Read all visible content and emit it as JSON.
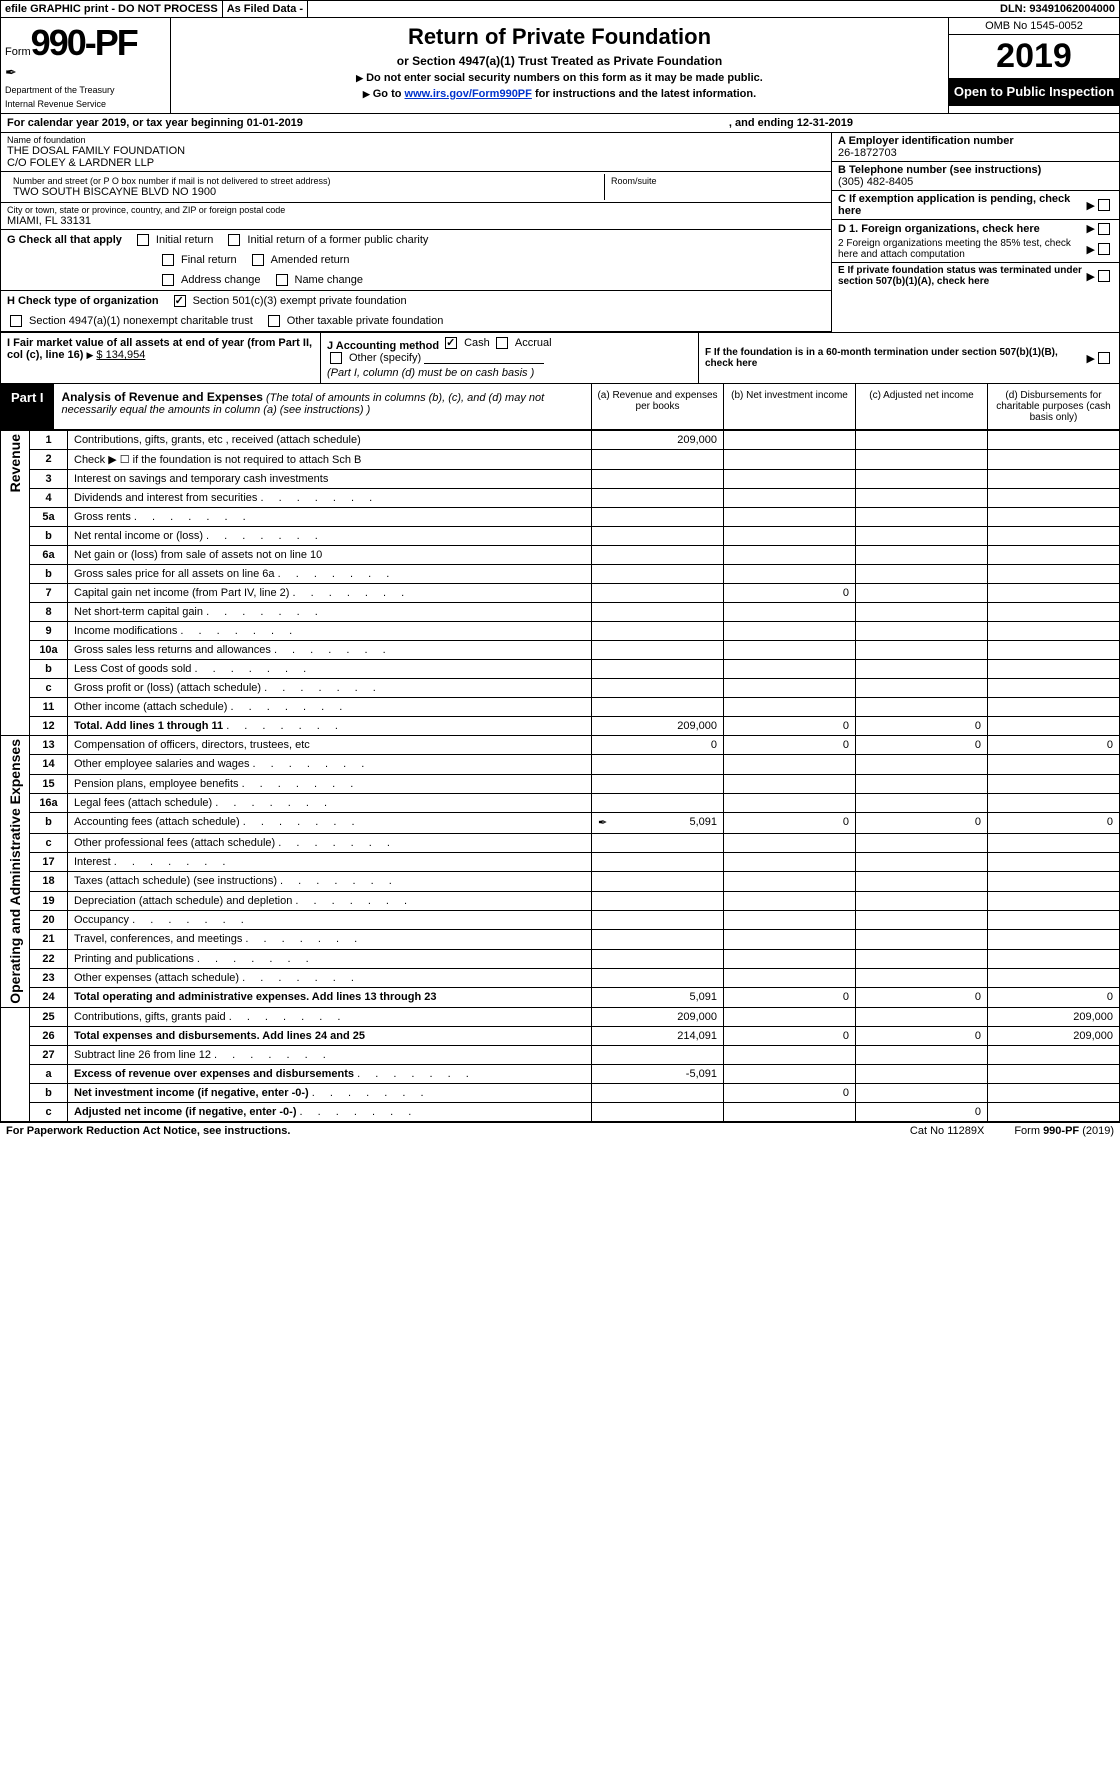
{
  "topbar": {
    "efile": "efile GRAPHIC print - DO NOT PROCESS",
    "asfiled": "As Filed Data -",
    "dln_label": "DLN:",
    "dln": "93491062004000"
  },
  "header": {
    "form_prefix": "Form",
    "form_number": "990-PF",
    "dept": "Department of the Treasury",
    "irs": "Internal Revenue Service",
    "title": "Return of Private Foundation",
    "subtitle": "or Section 4947(a)(1) Trust Treated as Private Foundation",
    "instr1": "Do not enter social security numbers on this form as it may be made public.",
    "instr2": "Go to",
    "instr_link": "www.irs.gov/Form990PF",
    "instr3": "for instructions and the latest information.",
    "omb": "OMB No 1545-0052",
    "year": "2019",
    "inspect": "Open to Public Inspection"
  },
  "cal": {
    "text1": "For calendar year 2019, or tax year beginning 01-01-2019",
    "text2": ", and ending 12-31-2019"
  },
  "entity": {
    "name_lbl": "Name of foundation",
    "name1": "THE DOSAL FAMILY FOUNDATION",
    "name2": "C/O FOLEY & LARDNER LLP",
    "addr_lbl": "Number and street (or P O  box number if mail is not delivered to street address)",
    "addr": "TWO SOUTH BISCAYNE BLVD NO 1900",
    "room_lbl": "Room/suite",
    "city_lbl": "City or town, state or province, country, and ZIP or foreign postal code",
    "city": "MIAMI, FL  33131",
    "ein_lbl": "A Employer identification number",
    "ein": "26-1872703",
    "tel_lbl": "B Telephone number (see instructions)",
    "tel": "(305) 482-8405",
    "c_lbl": "C If exemption application is pending, check here",
    "d1": "D 1. Foreign organizations, check here",
    "d2": "2 Foreign organizations meeting the 85% test, check here and attach computation",
    "e": "E  If private foundation status was terminated under section 507(b)(1)(A), check here",
    "f": "F  If the foundation is in a 60-month termination under section 507(b)(1)(B), check here"
  },
  "g": {
    "label": "G Check all that apply",
    "opts": [
      "Initial return",
      "Initial return of a former public charity",
      "Final return",
      "Amended return",
      "Address change",
      "Name change"
    ]
  },
  "h": {
    "label": "H Check type of organization",
    "opt1": "Section 501(c)(3) exempt private foundation",
    "opt2": "Section 4947(a)(1) nonexempt charitable trust",
    "opt3": "Other taxable private foundation"
  },
  "i": {
    "label": "I Fair market value of all assets at end of year (from Part II, col  (c), line 16)",
    "value": "$  134,954"
  },
  "j": {
    "label": "J Accounting method",
    "opts": [
      "Cash",
      "Accrual",
      "Other (specify)"
    ],
    "note": "(Part I, column (d) must be on cash basis )"
  },
  "part1": {
    "label": "Part I",
    "title": "Analysis of Revenue and Expenses",
    "desc": "(The total of amounts in columns (b), (c), and (d) may not necessarily equal the amounts in column (a) (see instructions) )",
    "cols": [
      "(a)    Revenue and expenses per books",
      "(b)    Net investment income",
      "(c)   Adjusted net income",
      "(d)   Disbursements for charitable purposes (cash basis only)"
    ]
  },
  "sections": {
    "revenue": "Revenue",
    "expenses": "Operating and Administrative Expenses"
  },
  "rows": [
    {
      "n": "1",
      "t": "Contributions, gifts, grants, etc , received (attach schedule)",
      "a": "209,000"
    },
    {
      "n": "2",
      "t": "Check ▶ ☐ if the foundation is not required to attach Sch  B"
    },
    {
      "n": "3",
      "t": "Interest on savings and temporary cash investments"
    },
    {
      "n": "4",
      "t": "Dividends and interest from securities"
    },
    {
      "n": "5a",
      "t": "Gross rents"
    },
    {
      "n": "b",
      "t": "Net rental income or (loss)"
    },
    {
      "n": "6a",
      "t": "Net gain or (loss) from sale of assets not on line 10"
    },
    {
      "n": "b",
      "t": "Gross sales price for all assets on line 6a"
    },
    {
      "n": "7",
      "t": "Capital gain net income (from Part IV, line 2)",
      "b": "0"
    },
    {
      "n": "8",
      "t": "Net short-term capital gain"
    },
    {
      "n": "9",
      "t": "Income modifications"
    },
    {
      "n": "10a",
      "t": "Gross sales less returns and allowances"
    },
    {
      "n": "b",
      "t": "Less  Cost of goods sold"
    },
    {
      "n": "c",
      "t": "Gross profit or (loss) (attach schedule)"
    },
    {
      "n": "11",
      "t": "Other income (attach schedule)"
    },
    {
      "n": "12",
      "t": "Total. Add lines 1 through 11",
      "bold": true,
      "a": "209,000",
      "b": "0",
      "c": "0"
    },
    {
      "n": "13",
      "t": "Compensation of officers, directors, trustees, etc",
      "a": "0",
      "b": "0",
      "c": "0",
      "d": "0"
    },
    {
      "n": "14",
      "t": "Other employee salaries and wages"
    },
    {
      "n": "15",
      "t": "Pension plans, employee benefits"
    },
    {
      "n": "16a",
      "t": "Legal fees (attach schedule)"
    },
    {
      "n": "b",
      "t": "Accounting fees (attach schedule)",
      "a": "5,091",
      "b": "0",
      "c": "0",
      "d": "0",
      "icon": true
    },
    {
      "n": "c",
      "t": "Other professional fees (attach schedule)"
    },
    {
      "n": "17",
      "t": "Interest"
    },
    {
      "n": "18",
      "t": "Taxes (attach schedule) (see instructions)"
    },
    {
      "n": "19",
      "t": "Depreciation (attach schedule) and depletion"
    },
    {
      "n": "20",
      "t": "Occupancy"
    },
    {
      "n": "21",
      "t": "Travel, conferences, and meetings"
    },
    {
      "n": "22",
      "t": "Printing and publications"
    },
    {
      "n": "23",
      "t": "Other expenses (attach schedule)"
    },
    {
      "n": "24",
      "t": "Total operating and administrative expenses. Add lines 13 through 23",
      "bold": true,
      "a": "5,091",
      "b": "0",
      "c": "0",
      "d": "0"
    },
    {
      "n": "25",
      "t": "Contributions, gifts, grants paid",
      "a": "209,000",
      "d": "209,000"
    },
    {
      "n": "26",
      "t": "Total expenses and disbursements. Add lines 24 and 25",
      "bold": true,
      "a": "214,091",
      "b": "0",
      "c": "0",
      "d": "209,000"
    },
    {
      "n": "27",
      "t": "Subtract line 26 from line 12"
    },
    {
      "n": "a",
      "t": "Excess of revenue over expenses and disbursements",
      "bold": true,
      "a": "-5,091"
    },
    {
      "n": "b",
      "t": "Net investment income (if negative, enter -0-)",
      "bold": true,
      "b": "0"
    },
    {
      "n": "c",
      "t": "Adjusted net income (if negative, enter -0-)",
      "bold": true,
      "c": "0"
    }
  ],
  "footer": {
    "left": "For Paperwork Reduction Act Notice, see instructions.",
    "mid": "Cat  No  11289X",
    "right": "Form 990-PF (2019)"
  }
}
